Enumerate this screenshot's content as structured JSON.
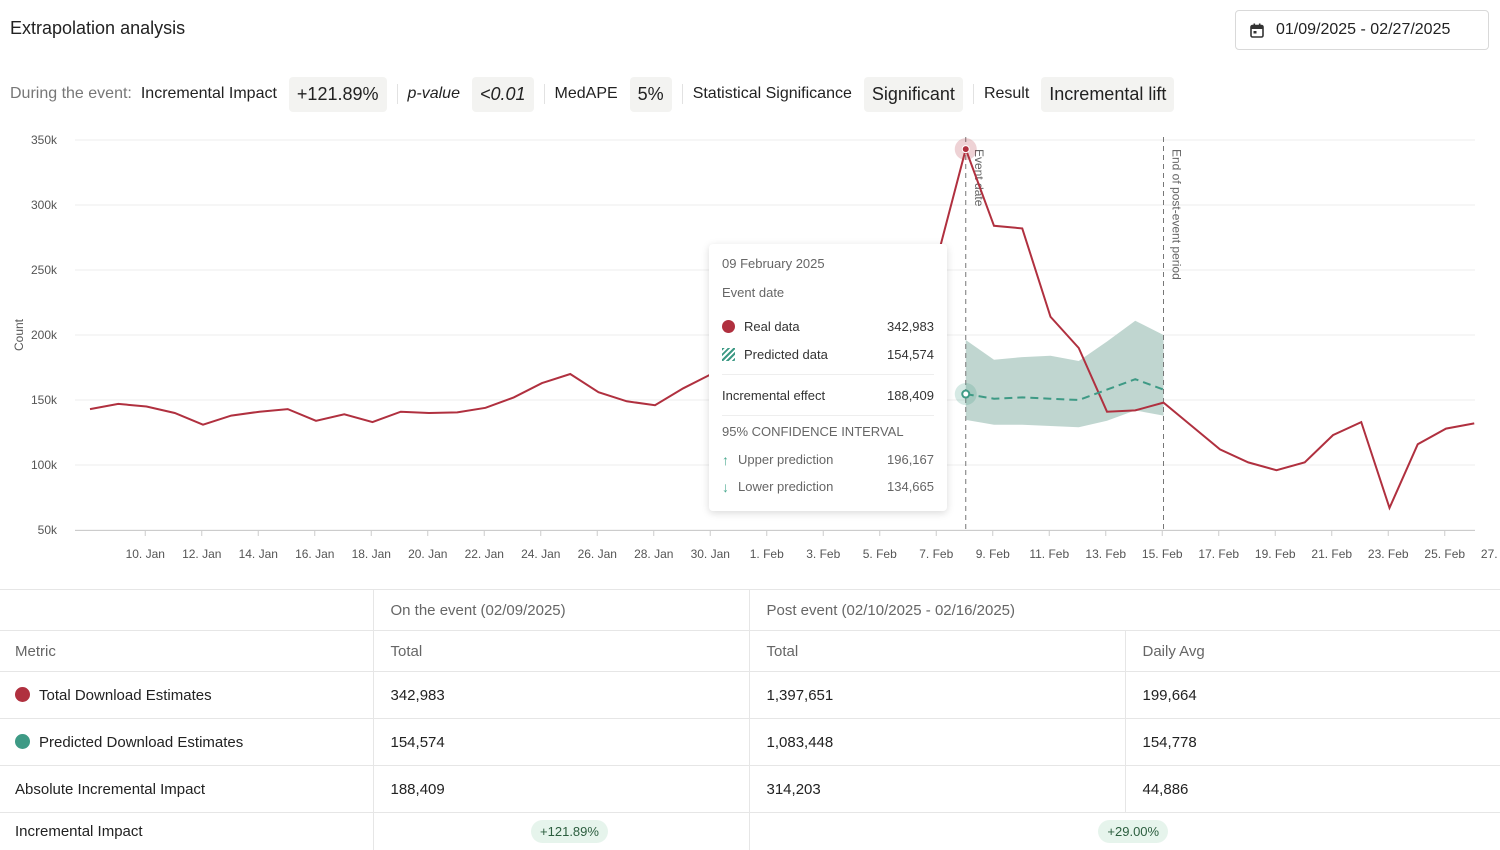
{
  "header": {
    "title": "Extrapolation analysis",
    "date_range": "01/09/2025 - 02/27/2025"
  },
  "stats": {
    "prefix": "During the event:",
    "items": [
      {
        "label": "Incremental Impact",
        "value": "+121.89%"
      },
      {
        "label": "p-value",
        "value": "<0.01"
      },
      {
        "label": "MedAPE",
        "value": "5%"
      },
      {
        "label": "Statistical Significance",
        "value": "Significant"
      },
      {
        "label": "Result",
        "value": "Incremental lift"
      }
    ]
  },
  "colors": {
    "real": "#b0303f",
    "predicted": "#3e9a85",
    "band": "#b9d2cb",
    "pill_bg": "#e6f4ec"
  },
  "chart_data": {
    "type": "line",
    "ylabel": "Count",
    "ylim": [
      50000,
      350000
    ],
    "y_ticks": [
      "350k",
      "300k",
      "250k",
      "200k",
      "150k",
      "100k",
      "50k"
    ],
    "x_ticks": [
      "10. Jan",
      "12. Jan",
      "14. Jan",
      "16. Jan",
      "18. Jan",
      "20. Jan",
      "22. Jan",
      "24. Jan",
      "26. Jan",
      "28. Jan",
      "30. Jan",
      "1. Feb",
      "3. Feb",
      "5. Feb",
      "7. Feb",
      "9. Feb",
      "11. Feb",
      "13. Feb",
      "15. Feb",
      "17. Feb",
      "19. Feb",
      "21. Feb",
      "23. Feb",
      "25. Feb",
      "27. Feb"
    ],
    "series": [
      {
        "name": "Real data",
        "x_days": [
          "01/09",
          "01/10",
          "01/11",
          "01/12",
          "01/13",
          "01/14",
          "01/15",
          "01/16",
          "01/17",
          "01/18",
          "01/19",
          "01/20",
          "01/21",
          "01/22",
          "01/23",
          "01/24",
          "01/25",
          "01/26",
          "01/27",
          "01/28",
          "01/29",
          "01/30",
          "01/31",
          "02/01",
          "02/02",
          "02/03",
          "02/04",
          "02/05",
          "02/06",
          "02/07",
          "02/08",
          "02/09",
          "02/10",
          "02/11",
          "02/12",
          "02/13",
          "02/14",
          "02/15",
          "02/16",
          "02/17",
          "02/18",
          "02/19",
          "02/20",
          "02/21",
          "02/22",
          "02/23",
          "02/24",
          "02/25",
          "02/26",
          "02/27"
        ],
        "values": [
          143000,
          147000,
          145000,
          140000,
          131000,
          138000,
          141000,
          143000,
          134000,
          139000,
          133000,
          141000,
          140000,
          140500,
          144000,
          152000,
          163000,
          170000,
          156000,
          149000,
          146000,
          159000,
          170000,
          168000,
          172000,
          180000,
          185000,
          190000,
          200000,
          210000,
          260000,
          342983,
          284000,
          282000,
          214000,
          190000,
          141000,
          142000,
          148000,
          130000,
          112000,
          102000,
          96000,
          102000,
          123000,
          133000,
          67000,
          116000,
          128000,
          132000
        ]
      },
      {
        "name": "Predicted data",
        "x_days": [
          "02/09",
          "02/10",
          "02/11",
          "02/12",
          "02/13",
          "02/14",
          "02/15",
          "02/16"
        ],
        "values": [
          154574,
          151000,
          152000,
          151000,
          150000,
          158000,
          166000,
          158000
        ]
      }
    ],
    "confidence_band": {
      "x_days": [
        "02/09",
        "02/10",
        "02/11",
        "02/12",
        "02/13",
        "02/14",
        "02/15",
        "02/16"
      ],
      "upper": [
        196167,
        181000,
        183000,
        184000,
        180000,
        195000,
        211000,
        200000
      ],
      "lower": [
        134665,
        131000,
        131000,
        130000,
        129000,
        134000,
        142000,
        138000
      ]
    },
    "annotations": [
      {
        "label": "Event date",
        "x_day": "02/09"
      },
      {
        "label": "End of post-event period",
        "x_day": "02/16"
      }
    ]
  },
  "tooltip": {
    "date": "09 February 2025",
    "event": "Event date",
    "real_label": "Real data",
    "real_value": "342,983",
    "pred_label": "Predicted data",
    "pred_value": "154,574",
    "effect_label": "Incremental effect",
    "effect_value": "188,409",
    "ci_title": "95% CONFIDENCE INTERVAL",
    "upper_label": "Upper prediction",
    "upper_value": "196,167",
    "lower_label": "Lower prediction",
    "lower_value": "134,665"
  },
  "table": {
    "header_on_event": "On the event (02/09/2025)",
    "header_post_event": "Post event (02/10/2025 - 02/16/2025)",
    "col_metric": "Metric",
    "col_total": "Total",
    "col_total2": "Total",
    "col_daily": "Daily Avg",
    "rows": [
      {
        "metric": "Total Download Estimates",
        "on_total": "342,983",
        "post_total": "1,397,651",
        "post_daily": "199,664"
      },
      {
        "metric": "Predicted Download Estimates",
        "on_total": "154,574",
        "post_total": "1,083,448",
        "post_daily": "154,778"
      },
      {
        "metric": "Absolute Incremental Impact",
        "on_total": "188,409",
        "post_total": "314,203",
        "post_daily": "44,886"
      }
    ],
    "impact_label": "Incremental Impact",
    "impact_on": "+121.89%",
    "impact_post": "+29.00%"
  }
}
